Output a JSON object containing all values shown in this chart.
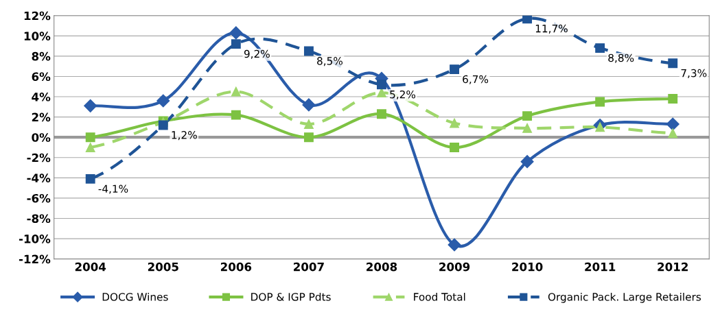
{
  "chart_data": {
    "type": "line",
    "categories": [
      "2004",
      "2005",
      "2006",
      "2007",
      "2008",
      "2009",
      "2010",
      "2011",
      "2012"
    ],
    "series": [
      {
        "name": "DOCG Wines",
        "color": "#2a5caa",
        "marker": "diamond",
        "line_style": "solid",
        "values": [
          3.1,
          3.6,
          10.3,
          3.2,
          5.8,
          -10.6,
          -2.4,
          1.2,
          1.3
        ]
      },
      {
        "name": "DOP & IGP Pdts",
        "color": "#7dc242",
        "marker": "square",
        "line_style": "solid",
        "values": [
          0.0,
          1.6,
          2.2,
          0.0,
          2.3,
          -1.0,
          2.1,
          3.5,
          3.8
        ]
      },
      {
        "name": "Food Total",
        "color": "#9fd66b",
        "marker": "triangle",
        "line_style": "dashed",
        "values": [
          -1.0,
          1.5,
          4.5,
          1.3,
          4.4,
          1.4,
          0.9,
          1.0,
          0.4
        ]
      },
      {
        "name": "Organic Pack. Large Retailers",
        "color": "#1f5496",
        "marker": "square",
        "line_style": "dashed",
        "values": [
          -4.1,
          1.2,
          9.2,
          8.5,
          5.2,
          6.7,
          11.7,
          8.8,
          7.3
        ],
        "value_labels": [
          "-4,1%",
          "1,2%",
          "9,2%",
          "8,5%",
          "5,2%",
          "6,7%",
          "11,7%",
          "8,8%",
          "7,3%"
        ]
      }
    ],
    "ylim": [
      -12,
      12
    ],
    "yticks": [
      {
        "value": -12,
        "label": "-12%"
      },
      {
        "value": -10,
        "label": "-10%"
      },
      {
        "value": -8,
        "label": "-8%"
      },
      {
        "value": -6,
        "label": "-6%"
      },
      {
        "value": -4,
        "label": "-4%"
      },
      {
        "value": -2,
        "label": "-2%"
      },
      {
        "value": 0,
        "label": "0%"
      },
      {
        "value": 2,
        "label": "2%"
      },
      {
        "value": 4,
        "label": "4%"
      },
      {
        "value": 6,
        "label": "6%"
      },
      {
        "value": 8,
        "label": "8%"
      },
      {
        "value": 10,
        "label": "10%"
      },
      {
        "value": 12,
        "label": "12%"
      }
    ],
    "ref_lines": [
      {
        "axis": "y",
        "value": 0,
        "color": "#999999"
      }
    ],
    "grid": "y",
    "legend": "bottom"
  }
}
